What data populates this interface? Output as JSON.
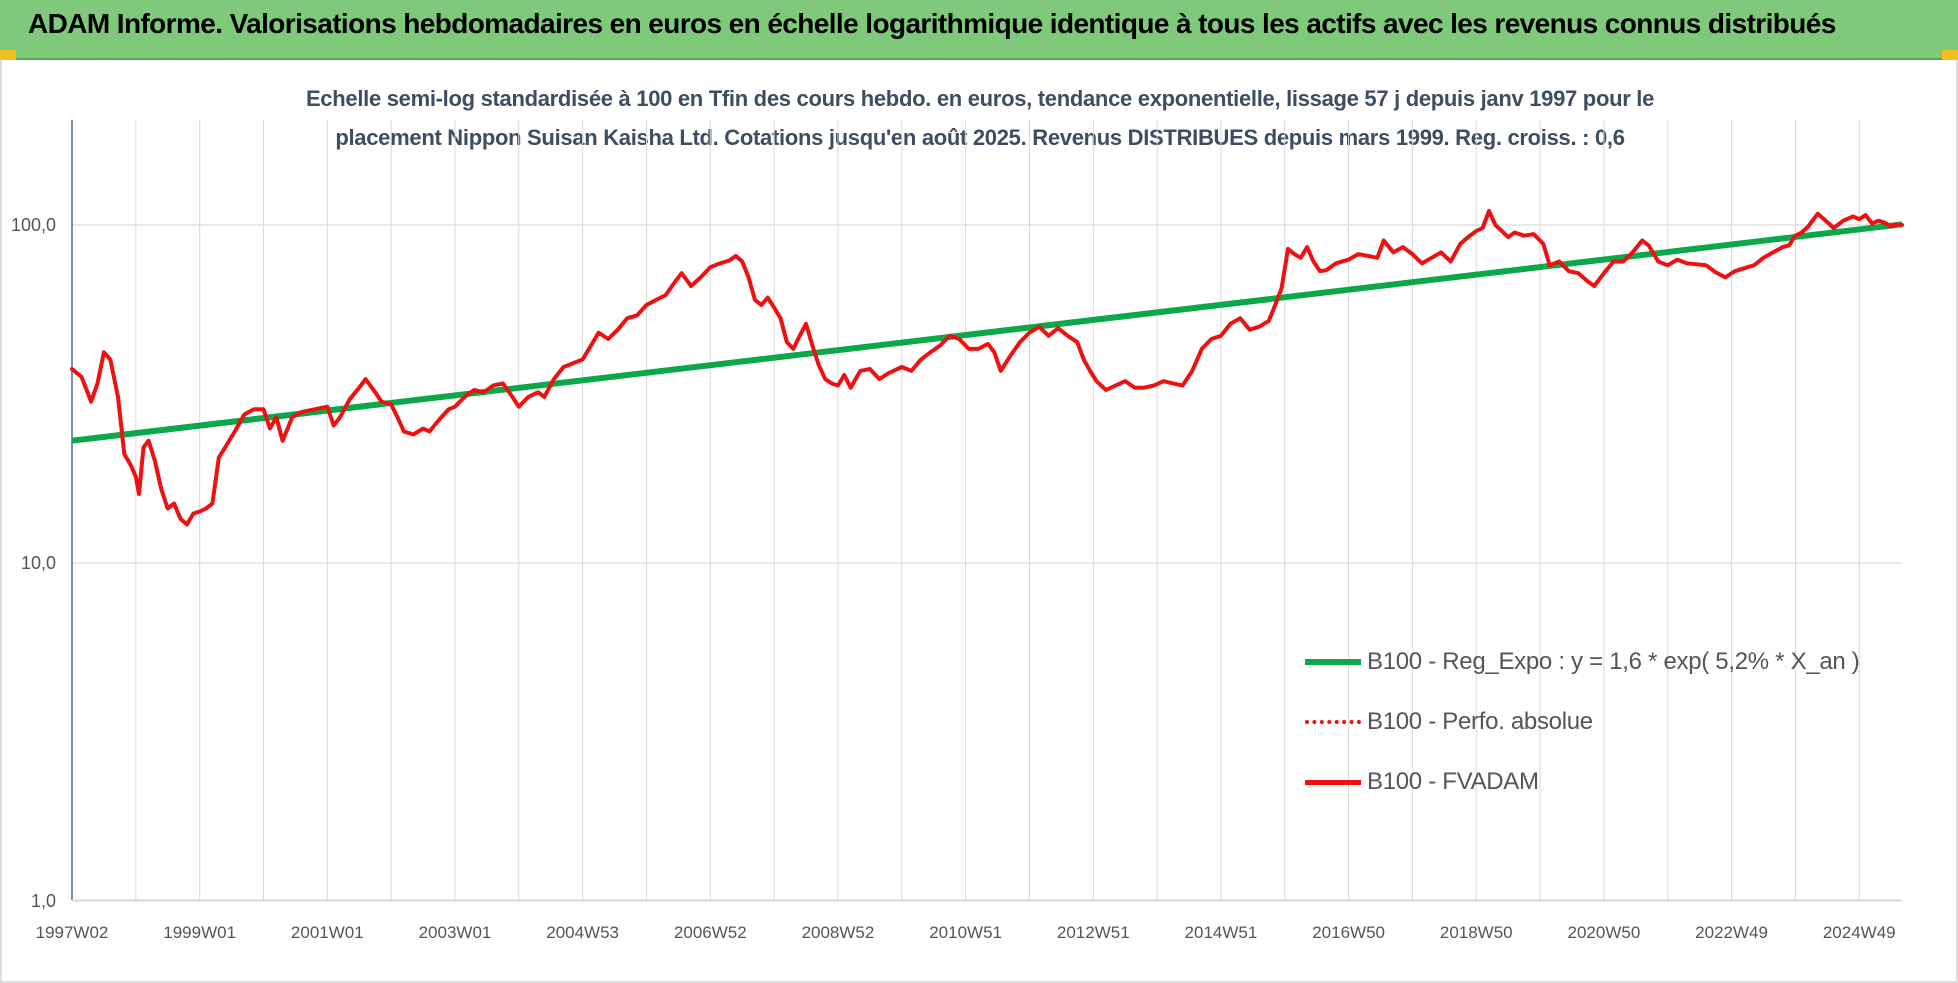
{
  "header": {
    "title": "ADAM Informe. Valorisations hebdomadaires en euros en échelle logarithmique identique à tous les actifs avec les revenus connus distribués"
  },
  "colors": {
    "header_bg": "#7fc97a",
    "regression": "#0aa84b",
    "fvadam": "#ee1111",
    "perfo": "#ee1111",
    "grid": "#d9d9d9",
    "axis_text": "#555555"
  },
  "chart_data": {
    "type": "line",
    "title_line1": "Echelle semi-log standardisée à 100 en Tfin des cours hebdo. en euros, tendance exponentielle, lissage 57 j depuis janv 1997 pour le",
    "title_line2": "placement Nippon Suisan Kaisha Ltd. Cotations jusqu'en août 2025. Revenus DISTRIBUES depuis mars 1999. Reg. croiss. : 0,6",
    "y_scale": "log",
    "ylim": [
      1,
      200
    ],
    "y_ticks": [
      {
        "value": 1,
        "label": "1,0"
      },
      {
        "value": 10,
        "label": "10,0"
      },
      {
        "value": 100,
        "label": "100,0"
      }
    ],
    "xlim": [
      1997.0,
      2025.67
    ],
    "x_ticks": [
      {
        "x": 1997.0,
        "label": "1997W02"
      },
      {
        "x": 1999.0,
        "label": "1999W01"
      },
      {
        "x": 2001.0,
        "label": "2001W01"
      },
      {
        "x": 2003.0,
        "label": "2003W01"
      },
      {
        "x": 2005.0,
        "label": "2004W53"
      },
      {
        "x": 2007.0,
        "label": "2006W52"
      },
      {
        "x": 2009.0,
        "label": "2008W52"
      },
      {
        "x": 2011.0,
        "label": "2010W51"
      },
      {
        "x": 2013.0,
        "label": "2012W51"
      },
      {
        "x": 2015.0,
        "label": "2014W51"
      },
      {
        "x": 2017.0,
        "label": "2016W50"
      },
      {
        "x": 2019.0,
        "label": "2018W50"
      },
      {
        "x": 2021.0,
        "label": "2020W50"
      },
      {
        "x": 2023.0,
        "label": "2022W49"
      },
      {
        "x": 2025.0,
        "label": "2024W49"
      }
    ],
    "grid": true,
    "legend_position": "bottom-right",
    "series": [
      {
        "name": "B100 - Reg_Expo : y = 1,6 * exp( 5,2% *  X_an )",
        "style": "solid-thick",
        "color": "#0aa84b",
        "points": [
          [
            1997.0,
            23.0
          ],
          [
            2025.67,
            100.5
          ]
        ]
      },
      {
        "name": "B100 - Perfo. absolue",
        "style": "dotted",
        "color": "#ee1111",
        "points": []
      },
      {
        "name": "B100 - FVADAM",
        "style": "solid",
        "color": "#ee1111",
        "points": [
          [
            1997.0,
            37.5
          ],
          [
            1997.15,
            35.5
          ],
          [
            1997.3,
            30.0
          ],
          [
            1997.4,
            34.0
          ],
          [
            1997.5,
            42.0
          ],
          [
            1997.6,
            40.0
          ],
          [
            1997.72,
            31.0
          ],
          [
            1997.82,
            21.0
          ],
          [
            1997.92,
            19.5
          ],
          [
            1998.0,
            18.0
          ],
          [
            1998.05,
            16.0
          ],
          [
            1998.12,
            22.0
          ],
          [
            1998.2,
            23.0
          ],
          [
            1998.3,
            20.0
          ],
          [
            1998.4,
            16.5
          ],
          [
            1998.5,
            14.5
          ],
          [
            1998.6,
            15.0
          ],
          [
            1998.7,
            13.5
          ],
          [
            1998.8,
            13.0
          ],
          [
            1998.9,
            14.0
          ],
          [
            1999.0,
            14.2
          ],
          [
            1999.1,
            14.5
          ],
          [
            1999.2,
            15.0
          ],
          [
            1999.3,
            20.5
          ],
          [
            1999.4,
            22.0
          ],
          [
            1999.55,
            24.5
          ],
          [
            1999.7,
            27.5
          ],
          [
            1999.85,
            28.5
          ],
          [
            2000.0,
            28.5
          ],
          [
            2000.1,
            25.0
          ],
          [
            2000.2,
            27.0
          ],
          [
            2000.3,
            23.0
          ],
          [
            2000.45,
            27.0
          ],
          [
            2000.6,
            28.0
          ],
          [
            2000.8,
            28.5
          ],
          [
            2001.0,
            29.0
          ],
          [
            2001.1,
            25.5
          ],
          [
            2001.2,
            27.0
          ],
          [
            2001.35,
            30.5
          ],
          [
            2001.5,
            33.0
          ],
          [
            2001.6,
            35.0
          ],
          [
            2001.75,
            32.0
          ],
          [
            2001.85,
            30.0
          ],
          [
            2002.0,
            29.5
          ],
          [
            2002.1,
            27.0
          ],
          [
            2002.2,
            24.5
          ],
          [
            2002.35,
            24.0
          ],
          [
            2002.5,
            25.0
          ],
          [
            2002.6,
            24.5
          ],
          [
            2002.75,
            26.5
          ],
          [
            2002.9,
            28.5
          ],
          [
            2003.0,
            29.0
          ],
          [
            2003.15,
            31.0
          ],
          [
            2003.3,
            32.5
          ],
          [
            2003.45,
            32.0
          ],
          [
            2003.6,
            33.5
          ],
          [
            2003.75,
            34.0
          ],
          [
            2003.9,
            31.0
          ],
          [
            2004.0,
            29.0
          ],
          [
            2004.15,
            31.0
          ],
          [
            2004.3,
            32.0
          ],
          [
            2004.4,
            31.0
          ],
          [
            2004.55,
            35.0
          ],
          [
            2004.7,
            38.0
          ],
          [
            2004.85,
            39.0
          ],
          [
            2005.0,
            40.0
          ],
          [
            2005.1,
            43.0
          ],
          [
            2005.25,
            48.0
          ],
          [
            2005.4,
            46.0
          ],
          [
            2005.55,
            49.0
          ],
          [
            2005.7,
            53.0
          ],
          [
            2005.85,
            54.0
          ],
          [
            2006.0,
            58.0
          ],
          [
            2006.15,
            60.0
          ],
          [
            2006.3,
            62.0
          ],
          [
            2006.45,
            68.0
          ],
          [
            2006.55,
            72.0
          ],
          [
            2006.7,
            66.0
          ],
          [
            2006.85,
            70.0
          ],
          [
            2007.0,
            75.0
          ],
          [
            2007.15,
            77.0
          ],
          [
            2007.3,
            78.5
          ],
          [
            2007.4,
            81.0
          ],
          [
            2007.5,
            78.0
          ],
          [
            2007.6,
            70.0
          ],
          [
            2007.7,
            60.0
          ],
          [
            2007.8,
            58.0
          ],
          [
            2007.9,
            61.0
          ],
          [
            2008.0,
            57.0
          ],
          [
            2008.1,
            53.0
          ],
          [
            2008.2,
            45.0
          ],
          [
            2008.3,
            43.0
          ],
          [
            2008.4,
            47.0
          ],
          [
            2008.5,
            51.0
          ],
          [
            2008.6,
            44.0
          ],
          [
            2008.7,
            38.5
          ],
          [
            2008.8,
            35.0
          ],
          [
            2008.9,
            34.0
          ],
          [
            2009.0,
            33.5
          ],
          [
            2009.1,
            36.0
          ],
          [
            2009.2,
            33.0
          ],
          [
            2009.35,
            37.0
          ],
          [
            2009.5,
            37.5
          ],
          [
            2009.65,
            35.0
          ],
          [
            2009.8,
            36.5
          ],
          [
            2010.0,
            38.0
          ],
          [
            2010.15,
            37.0
          ],
          [
            2010.3,
            40.0
          ],
          [
            2010.45,
            42.0
          ],
          [
            2010.6,
            44.0
          ],
          [
            2010.75,
            47.0
          ],
          [
            2010.9,
            46.0
          ],
          [
            2011.05,
            43.0
          ],
          [
            2011.2,
            43.0
          ],
          [
            2011.35,
            44.5
          ],
          [
            2011.45,
            42.0
          ],
          [
            2011.55,
            37.0
          ],
          [
            2011.7,
            41.0
          ],
          [
            2011.85,
            45.0
          ],
          [
            2012.0,
            48.0
          ],
          [
            2012.15,
            50.0
          ],
          [
            2012.3,
            47.0
          ],
          [
            2012.45,
            49.5
          ],
          [
            2012.6,
            47.0
          ],
          [
            2012.75,
            45.0
          ],
          [
            2012.85,
            40.0
          ],
          [
            2012.95,
            37.0
          ],
          [
            2013.05,
            34.5
          ],
          [
            2013.2,
            32.5
          ],
          [
            2013.35,
            33.5
          ],
          [
            2013.5,
            34.5
          ],
          [
            2013.65,
            33.0
          ],
          [
            2013.8,
            33.0
          ],
          [
            2013.95,
            33.5
          ],
          [
            2014.1,
            34.5
          ],
          [
            2014.25,
            34.0
          ],
          [
            2014.4,
            33.5
          ],
          [
            2014.55,
            37.0
          ],
          [
            2014.7,
            43.0
          ],
          [
            2014.85,
            46.0
          ],
          [
            2015.0,
            47.0
          ],
          [
            2015.15,
            51.0
          ],
          [
            2015.3,
            53.0
          ],
          [
            2015.45,
            49.0
          ],
          [
            2015.6,
            50.0
          ],
          [
            2015.75,
            52.0
          ],
          [
            2015.85,
            58.0
          ],
          [
            2015.95,
            65.0
          ],
          [
            2016.05,
            85.0
          ],
          [
            2016.15,
            82.0
          ],
          [
            2016.25,
            80.0
          ],
          [
            2016.35,
            86.0
          ],
          [
            2016.45,
            78.0
          ],
          [
            2016.55,
            73.0
          ],
          [
            2016.65,
            73.5
          ],
          [
            2016.8,
            77.0
          ],
          [
            2017.0,
            79.0
          ],
          [
            2017.15,
            82.0
          ],
          [
            2017.3,
            81.0
          ],
          [
            2017.45,
            80.0
          ],
          [
            2017.55,
            90.0
          ],
          [
            2017.7,
            83.0
          ],
          [
            2017.85,
            86.0
          ],
          [
            2018.0,
            82.0
          ],
          [
            2018.15,
            77.0
          ],
          [
            2018.3,
            80.0
          ],
          [
            2018.45,
            83.0
          ],
          [
            2018.6,
            78.0
          ],
          [
            2018.75,
            88.0
          ],
          [
            2018.9,
            93.0
          ],
          [
            2019.0,
            96.0
          ],
          [
            2019.1,
            98.0
          ],
          [
            2019.2,
            110.0
          ],
          [
            2019.3,
            100.0
          ],
          [
            2019.4,
            96.0
          ],
          [
            2019.5,
            92.0
          ],
          [
            2019.6,
            95.0
          ],
          [
            2019.75,
            93.0
          ],
          [
            2019.9,
            94.0
          ],
          [
            2020.05,
            88.0
          ],
          [
            2020.15,
            76.0
          ],
          [
            2020.3,
            78.0
          ],
          [
            2020.45,
            73.0
          ],
          [
            2020.6,
            72.0
          ],
          [
            2020.75,
            68.0
          ],
          [
            2020.85,
            66.0
          ],
          [
            2021.0,
            72.0
          ],
          [
            2021.15,
            78.0
          ],
          [
            2021.3,
            78.0
          ],
          [
            2021.45,
            83.0
          ],
          [
            2021.6,
            90.0
          ],
          [
            2021.7,
            87.0
          ],
          [
            2021.85,
            78.0
          ],
          [
            2022.0,
            76.0
          ],
          [
            2022.15,
            79.0
          ],
          [
            2022.3,
            77.0
          ],
          [
            2022.45,
            76.5
          ],
          [
            2022.6,
            76.0
          ],
          [
            2022.75,
            72.5
          ],
          [
            2022.9,
            70.0
          ],
          [
            2023.05,
            73.0
          ],
          [
            2023.2,
            74.5
          ],
          [
            2023.35,
            76.0
          ],
          [
            2023.5,
            80.0
          ],
          [
            2023.65,
            83.0
          ],
          [
            2023.8,
            86.0
          ],
          [
            2023.9,
            87.0
          ],
          [
            2024.0,
            93.0
          ],
          [
            2024.1,
            95.0
          ],
          [
            2024.2,
            99.0
          ],
          [
            2024.35,
            108.0
          ],
          [
            2024.5,
            102.0
          ],
          [
            2024.6,
            98.0
          ],
          [
            2024.75,
            103.0
          ],
          [
            2024.9,
            106.0
          ],
          [
            2025.0,
            104.0
          ],
          [
            2025.1,
            107.0
          ],
          [
            2025.2,
            101.0
          ],
          [
            2025.3,
            103.0
          ],
          [
            2025.4,
            101.5
          ],
          [
            2025.5,
            99.0
          ],
          [
            2025.6,
            100.5
          ],
          [
            2025.67,
            100.0
          ]
        ]
      }
    ]
  }
}
